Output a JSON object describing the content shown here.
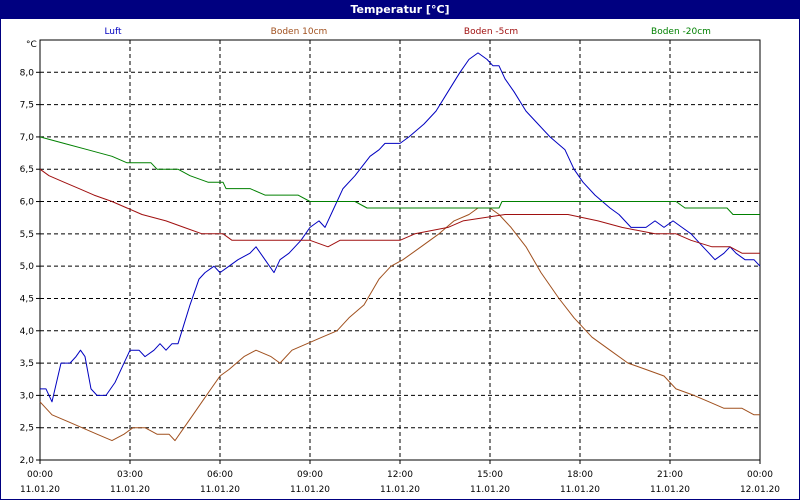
{
  "window": {
    "title": "Temperatur [°C]"
  },
  "chart_data": {
    "type": "line",
    "title": "Temperatur [°C]",
    "ylabel": "°C",
    "xlabel": "",
    "ylim": [
      2.0,
      8.5
    ],
    "yticks": [
      "2,0",
      "2,5",
      "3,0",
      "3,5",
      "4,0",
      "4,5",
      "5,0",
      "5,5",
      "6,0",
      "6,5",
      "7,0",
      "7,5",
      "8,0"
    ],
    "xlim_hours": [
      0,
      24
    ],
    "xticks": [
      {
        "time": "00:00",
        "date": "11.01.20"
      },
      {
        "time": "03:00",
        "date": "11.01.20"
      },
      {
        "time": "06:00",
        "date": "11.01.20"
      },
      {
        "time": "09:00",
        "date": "11.01.20"
      },
      {
        "time": "12:00",
        "date": "11.01.20"
      },
      {
        "time": "15:00",
        "date": "11.01.20"
      },
      {
        "time": "18:00",
        "date": "11.01.20"
      },
      {
        "time": "21:00",
        "date": "11.01.20"
      },
      {
        "time": "00:00",
        "date": "12.01.20"
      }
    ],
    "grid": true,
    "legend_position": "top",
    "series": [
      {
        "name": "Luft",
        "color": "#0000c0",
        "points": [
          [
            0,
            3.1
          ],
          [
            0.2,
            3.1
          ],
          [
            0.4,
            2.9
          ],
          [
            0.7,
            3.5
          ],
          [
            1.0,
            3.5
          ],
          [
            1.2,
            3.6
          ],
          [
            1.35,
            3.7
          ],
          [
            1.5,
            3.6
          ],
          [
            1.7,
            3.1
          ],
          [
            1.9,
            3.0
          ],
          [
            2.2,
            3.0
          ],
          [
            2.5,
            3.2
          ],
          [
            2.8,
            3.5
          ],
          [
            3.0,
            3.7
          ],
          [
            3.3,
            3.7
          ],
          [
            3.5,
            3.6
          ],
          [
            3.8,
            3.7
          ],
          [
            4.0,
            3.8
          ],
          [
            4.2,
            3.7
          ],
          [
            4.4,
            3.8
          ],
          [
            4.6,
            3.8
          ],
          [
            4.8,
            4.1
          ],
          [
            5.0,
            4.4
          ],
          [
            5.3,
            4.8
          ],
          [
            5.5,
            4.9
          ],
          [
            5.8,
            5.0
          ],
          [
            6.0,
            4.9
          ],
          [
            6.3,
            5.0
          ],
          [
            6.6,
            5.1
          ],
          [
            7.0,
            5.2
          ],
          [
            7.2,
            5.3
          ],
          [
            7.5,
            5.1
          ],
          [
            7.8,
            4.9
          ],
          [
            8.0,
            5.1
          ],
          [
            8.3,
            5.2
          ],
          [
            8.7,
            5.4
          ],
          [
            9.0,
            5.6
          ],
          [
            9.3,
            5.7
          ],
          [
            9.5,
            5.6
          ],
          [
            9.8,
            5.9
          ],
          [
            10.1,
            6.2
          ],
          [
            10.5,
            6.4
          ],
          [
            11.0,
            6.7
          ],
          [
            11.3,
            6.8
          ],
          [
            11.5,
            6.9
          ],
          [
            12.0,
            6.9
          ],
          [
            12.3,
            7.0
          ],
          [
            12.8,
            7.2
          ],
          [
            13.2,
            7.4
          ],
          [
            13.6,
            7.7
          ],
          [
            14.0,
            8.0
          ],
          [
            14.3,
            8.2
          ],
          [
            14.6,
            8.3
          ],
          [
            14.9,
            8.2
          ],
          [
            15.1,
            8.1
          ],
          [
            15.3,
            8.1
          ],
          [
            15.5,
            7.9
          ],
          [
            15.8,
            7.7
          ],
          [
            16.2,
            7.4
          ],
          [
            16.6,
            7.2
          ],
          [
            17.0,
            7.0
          ],
          [
            17.5,
            6.8
          ],
          [
            17.8,
            6.5
          ],
          [
            18.1,
            6.3
          ],
          [
            18.5,
            6.1
          ],
          [
            19.0,
            5.9
          ],
          [
            19.3,
            5.8
          ],
          [
            19.7,
            5.6
          ],
          [
            20.2,
            5.6
          ],
          [
            20.5,
            5.7
          ],
          [
            20.8,
            5.6
          ],
          [
            21.1,
            5.7
          ],
          [
            21.4,
            5.6
          ],
          [
            21.7,
            5.5
          ],
          [
            21.9,
            5.4
          ],
          [
            22.1,
            5.3
          ],
          [
            22.3,
            5.2
          ],
          [
            22.5,
            5.1
          ],
          [
            22.8,
            5.2
          ],
          [
            23.0,
            5.3
          ],
          [
            23.2,
            5.2
          ],
          [
            23.5,
            5.1
          ],
          [
            23.8,
            5.1
          ],
          [
            24.0,
            5.0
          ]
        ]
      },
      {
        "name": "Boden 10cm",
        "color": "#a0501e",
        "points": [
          [
            0,
            2.9
          ],
          [
            0.4,
            2.7
          ],
          [
            0.9,
            2.6
          ],
          [
            1.4,
            2.5
          ],
          [
            1.9,
            2.4
          ],
          [
            2.4,
            2.3
          ],
          [
            2.8,
            2.4
          ],
          [
            3.1,
            2.5
          ],
          [
            3.5,
            2.5
          ],
          [
            3.9,
            2.4
          ],
          [
            4.3,
            2.4
          ],
          [
            4.5,
            2.3
          ],
          [
            4.8,
            2.5
          ],
          [
            5.1,
            2.7
          ],
          [
            5.4,
            2.9
          ],
          [
            5.7,
            3.1
          ],
          [
            6.0,
            3.3
          ],
          [
            6.3,
            3.4
          ],
          [
            6.8,
            3.6
          ],
          [
            7.2,
            3.7
          ],
          [
            7.7,
            3.6
          ],
          [
            8.0,
            3.5
          ],
          [
            8.4,
            3.7
          ],
          [
            8.9,
            3.8
          ],
          [
            9.4,
            3.9
          ],
          [
            9.9,
            4.0
          ],
          [
            10.3,
            4.2
          ],
          [
            10.8,
            4.4
          ],
          [
            11.3,
            4.8
          ],
          [
            11.7,
            5.0
          ],
          [
            12.1,
            5.1
          ],
          [
            12.7,
            5.3
          ],
          [
            13.3,
            5.5
          ],
          [
            13.8,
            5.7
          ],
          [
            14.3,
            5.8
          ],
          [
            14.6,
            5.9
          ],
          [
            15.0,
            5.9
          ],
          [
            15.3,
            5.8
          ],
          [
            15.7,
            5.6
          ],
          [
            16.2,
            5.3
          ],
          [
            16.7,
            4.9
          ],
          [
            17.3,
            4.5
          ],
          [
            17.8,
            4.2
          ],
          [
            18.4,
            3.9
          ],
          [
            19.0,
            3.7
          ],
          [
            19.6,
            3.5
          ],
          [
            20.2,
            3.4
          ],
          [
            20.8,
            3.3
          ],
          [
            21.2,
            3.1
          ],
          [
            21.8,
            3.0
          ],
          [
            22.3,
            2.9
          ],
          [
            22.8,
            2.8
          ],
          [
            23.4,
            2.8
          ],
          [
            23.8,
            2.7
          ],
          [
            24.0,
            2.7
          ]
        ]
      },
      {
        "name": "Boden -5cm",
        "color": "#a01010",
        "points": [
          [
            0,
            6.5
          ],
          [
            0.3,
            6.4
          ],
          [
            0.8,
            6.3
          ],
          [
            1.3,
            6.2
          ],
          [
            1.8,
            6.1
          ],
          [
            2.4,
            6.0
          ],
          [
            2.9,
            5.9
          ],
          [
            3.4,
            5.8
          ],
          [
            4.2,
            5.7
          ],
          [
            4.8,
            5.6
          ],
          [
            5.4,
            5.5
          ],
          [
            6.1,
            5.5
          ],
          [
            6.4,
            5.4
          ],
          [
            7.5,
            5.4
          ],
          [
            9.0,
            5.4
          ],
          [
            9.6,
            5.3
          ],
          [
            10.0,
            5.4
          ],
          [
            12.0,
            5.4
          ],
          [
            12.5,
            5.5
          ],
          [
            13.6,
            5.6
          ],
          [
            14.1,
            5.7
          ],
          [
            15.5,
            5.8
          ],
          [
            16.5,
            5.8
          ],
          [
            17.0,
            5.8
          ],
          [
            17.6,
            5.8
          ],
          [
            18.6,
            5.7
          ],
          [
            19.4,
            5.6
          ],
          [
            20.5,
            5.5
          ],
          [
            21.2,
            5.5
          ],
          [
            21.7,
            5.4
          ],
          [
            22.4,
            5.3
          ],
          [
            23.0,
            5.3
          ],
          [
            23.4,
            5.2
          ],
          [
            24.0,
            5.2
          ]
        ]
      },
      {
        "name": "Boden -20cm",
        "color": "#008000",
        "points": [
          [
            0,
            7.0
          ],
          [
            0.8,
            6.9
          ],
          [
            1.6,
            6.8
          ],
          [
            2.4,
            6.7
          ],
          [
            2.9,
            6.6
          ],
          [
            3.7,
            6.6
          ],
          [
            3.9,
            6.5
          ],
          [
            4.6,
            6.5
          ],
          [
            5.0,
            6.4
          ],
          [
            5.6,
            6.3
          ],
          [
            6.1,
            6.3
          ],
          [
            6.2,
            6.2
          ],
          [
            7.0,
            6.2
          ],
          [
            7.5,
            6.1
          ],
          [
            8.6,
            6.1
          ],
          [
            9.0,
            6.0
          ],
          [
            10.5,
            6.0
          ],
          [
            10.9,
            5.9
          ],
          [
            14.0,
            5.9
          ],
          [
            15.3,
            5.9
          ],
          [
            15.4,
            6.0
          ],
          [
            21.2,
            6.0
          ],
          [
            21.5,
            5.9
          ],
          [
            22.9,
            5.9
          ],
          [
            23.1,
            5.8
          ],
          [
            24.0,
            5.8
          ]
        ]
      }
    ]
  }
}
